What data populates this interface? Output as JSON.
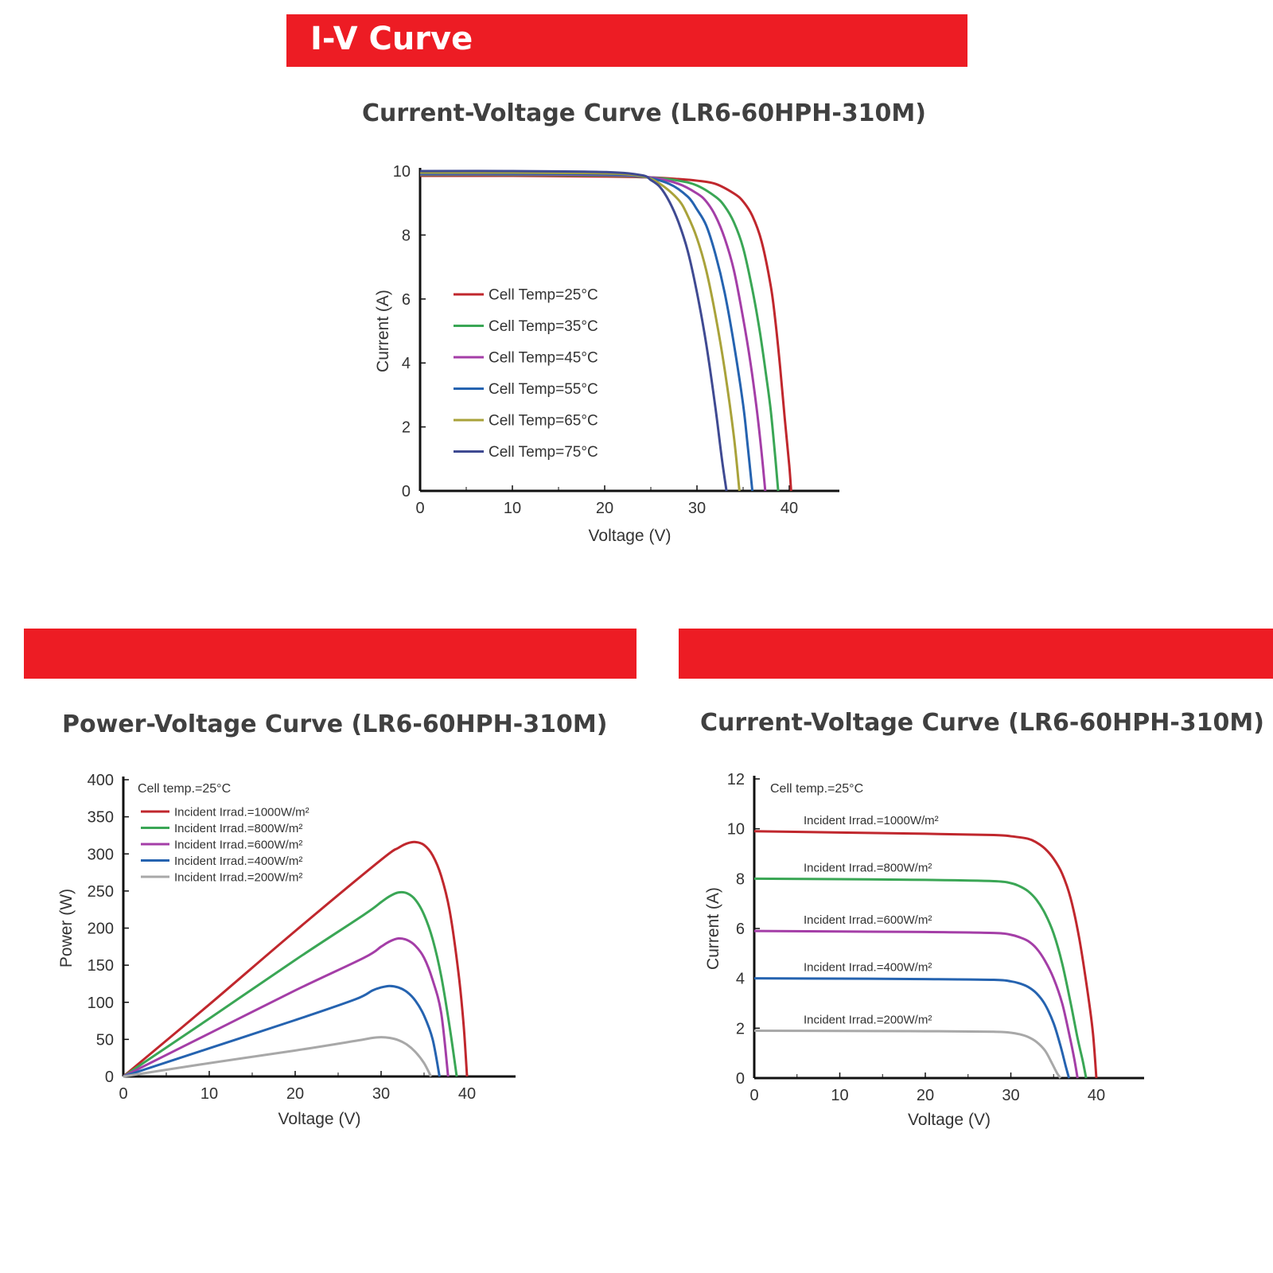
{
  "header": {
    "title": "I-V Curve"
  },
  "colors": {
    "banner": "#ed1c24",
    "red": "#c0272d",
    "green": "#3aa655",
    "magenta": "#a43ea7",
    "blue": "#2563b0",
    "olive": "#a9a23a",
    "navy": "#3f4a92",
    "gray": "#a8a8a8"
  },
  "chart_data": [
    {
      "type": "line",
      "title": "Current-Voltage Curve (LR6-60HPH-310M)",
      "xlabel": "Voltage (V)",
      "ylabel": "Current (A)",
      "xlim": [
        0,
        45
      ],
      "ylim": [
        0,
        10
      ],
      "xticks": [
        "0",
        "10",
        "20",
        "30",
        "40"
      ],
      "yticks": [
        "0",
        "2",
        "4",
        "6",
        "8",
        "10"
      ],
      "legend_position": "center-left",
      "series": [
        {
          "name": "Cell Temp=25°C",
          "color": "#c0272d",
          "x": [
            0,
            10,
            20,
            25,
            28,
            30,
            32,
            34,
            35,
            36,
            37,
            38,
            38.5,
            39,
            39.5,
            40,
            40.2
          ],
          "y": [
            9.85,
            9.85,
            9.83,
            9.8,
            9.75,
            9.7,
            9.6,
            9.3,
            9.05,
            8.6,
            7.8,
            6.4,
            5.3,
            3.9,
            2.3,
            0.8,
            0
          ]
        },
        {
          "name": "Cell Temp=35°C",
          "color": "#3aa655",
          "x": [
            0,
            10,
            20,
            25,
            28,
            30,
            32,
            33,
            34,
            35,
            36,
            36.8,
            37.5,
            38,
            38.5,
            38.8
          ],
          "y": [
            9.88,
            9.88,
            9.86,
            9.8,
            9.7,
            9.55,
            9.2,
            8.9,
            8.4,
            7.6,
            6.3,
            5,
            3.6,
            2.5,
            1,
            0
          ]
        },
        {
          "name": "Cell Temp=45°C",
          "color": "#a43ea7",
          "x": [
            0,
            10,
            20,
            25,
            28,
            30,
            31,
            32,
            33,
            34,
            35,
            35.8,
            36.5,
            37,
            37.4
          ],
          "y": [
            9.9,
            9.9,
            9.88,
            9.8,
            9.6,
            9.3,
            9.05,
            8.6,
            7.9,
            6.9,
            5.4,
            4,
            2.5,
            1.2,
            0
          ]
        },
        {
          "name": "Cell Temp=55°C",
          "color": "#2563b0",
          "x": [
            0,
            10,
            20,
            24,
            27,
            29,
            30,
            31,
            32,
            33,
            34,
            35,
            35.5,
            36
          ],
          "y": [
            9.92,
            9.92,
            9.9,
            9.83,
            9.6,
            9.2,
            8.8,
            8.3,
            7.4,
            6.2,
            4.6,
            2.7,
            1.4,
            0
          ]
        },
        {
          "name": "Cell Temp=65°C",
          "color": "#a9a23a",
          "x": [
            0,
            10,
            20,
            24,
            26,
            28,
            29,
            30,
            31,
            32,
            33,
            34,
            34.6
          ],
          "y": [
            9.95,
            9.95,
            9.93,
            9.84,
            9.6,
            9.1,
            8.6,
            7.9,
            6.9,
            5.5,
            3.8,
            1.7,
            0
          ]
        },
        {
          "name": "Cell Temp=75°C",
          "color": "#3f4a92",
          "x": [
            0,
            10,
            20,
            24,
            25,
            26,
            27,
            28,
            29,
            30,
            31,
            32,
            32.7,
            33.2
          ],
          "y": [
            10,
            10,
            9.97,
            9.87,
            9.72,
            9.5,
            9.05,
            8.4,
            7.5,
            6.2,
            4.6,
            2.6,
            1,
            0
          ]
        }
      ]
    },
    {
      "type": "line",
      "title": "Power-Voltage Curve (LR6-60HPH-310M)",
      "xlabel": "Voltage (V)",
      "ylabel": "Power (W)",
      "xlim": [
        0,
        45
      ],
      "ylim": [
        0,
        400
      ],
      "xticks": [
        "0",
        "10",
        "20",
        "30",
        "40"
      ],
      "yticks": [
        "0",
        "50",
        "100",
        "150",
        "200",
        "250",
        "300",
        "350",
        "400"
      ],
      "legend_position": "top-left",
      "annotation": "Cell temp.=25°C",
      "series": [
        {
          "name": "Incident Irrad.=1000W/m²",
          "color": "#c0272d",
          "x": [
            0,
            10,
            20,
            30,
            32,
            33,
            34,
            35,
            36,
            37,
            38,
            39,
            39.6,
            40
          ],
          "y": [
            0,
            97,
            196,
            292,
            308,
            314,
            316,
            312,
            298,
            270,
            222,
            140,
            70,
            0
          ]
        },
        {
          "name": "Incident Irrad.=800W/m²",
          "color": "#3aa655",
          "x": [
            0,
            10,
            20,
            28,
            30,
            31,
            32,
            33,
            34,
            35,
            36,
            37,
            38,
            38.8
          ],
          "y": [
            0,
            78,
            157,
            218,
            235,
            243,
            248,
            247,
            238,
            218,
            185,
            135,
            65,
            0
          ]
        },
        {
          "name": "Incident Irrad.=600W/m²",
          "color": "#a43ea7",
          "x": [
            0,
            10,
            20,
            28,
            30,
            31,
            32,
            33,
            34,
            35,
            36,
            37,
            37.8
          ],
          "y": [
            0,
            58,
            116,
            160,
            175,
            182,
            186,
            184,
            176,
            160,
            130,
            85,
            0
          ]
        },
        {
          "name": "Incident Irrad.=400W/m²",
          "color": "#2563b0",
          "x": [
            0,
            10,
            20,
            27,
            29,
            30,
            31,
            32,
            33,
            34,
            35,
            36,
            36.8
          ],
          "y": [
            0,
            38,
            76,
            104,
            116,
            120,
            122,
            120,
            114,
            102,
            82,
            50,
            0
          ]
        },
        {
          "name": "Incident Irrad.=200W/m²",
          "color": "#a8a8a8",
          "x": [
            0,
            10,
            20,
            27,
            29,
            30,
            31,
            32,
            33,
            34,
            35,
            35.8
          ],
          "y": [
            0,
            18,
            35,
            48,
            52,
            53,
            52,
            49,
            43,
            33,
            18,
            0
          ]
        }
      ]
    },
    {
      "type": "line",
      "title": "Current-Voltage Curve (LR6-60HPH-310M)",
      "xlabel": "Voltage (V)",
      "ylabel": "Current (A)",
      "xlim": [
        0,
        45
      ],
      "ylim": [
        0,
        12
      ],
      "xticks": [
        "0",
        "10",
        "20",
        "30",
        "40"
      ],
      "yticks": [
        "0",
        "2",
        "4",
        "6",
        "8",
        "10",
        "12"
      ],
      "legend_position": "inline",
      "annotation": "Cell temp.=25°C",
      "series": [
        {
          "name": "Incident Irrad.=1000W/m²",
          "color": "#c0272d",
          "x": [
            0,
            10,
            20,
            28,
            30,
            32,
            33,
            34,
            35,
            36,
            37,
            38,
            39,
            39.6,
            40
          ],
          "y": [
            9.9,
            9.85,
            9.8,
            9.75,
            9.7,
            9.6,
            9.45,
            9.2,
            8.8,
            8.2,
            7.2,
            5.6,
            3.4,
            1.8,
            0
          ]
        },
        {
          "name": "Incident Irrad.=800W/m²",
          "color": "#3aa655",
          "x": [
            0,
            10,
            20,
            28,
            30,
            31,
            32,
            33,
            34,
            35,
            36,
            37,
            37.8,
            38.4,
            38.8
          ],
          "y": [
            8,
            7.98,
            7.95,
            7.9,
            7.82,
            7.7,
            7.5,
            7.15,
            6.6,
            5.8,
            4.6,
            3,
            1.6,
            0.7,
            0
          ]
        },
        {
          "name": "Incident Irrad.=600W/m²",
          "color": "#a43ea7",
          "x": [
            0,
            10,
            20,
            28,
            30,
            31,
            32,
            33,
            34,
            35,
            36,
            36.8,
            37.4,
            37.8
          ],
          "y": [
            5.9,
            5.88,
            5.86,
            5.82,
            5.75,
            5.65,
            5.5,
            5.2,
            4.7,
            4,
            3,
            1.8,
            0.8,
            0
          ]
        },
        {
          "name": "Incident Irrad.=400W/m²",
          "color": "#2563b0",
          "x": [
            0,
            10,
            20,
            28,
            30,
            31,
            32,
            33,
            34,
            35,
            35.8,
            36.4,
            36.8
          ],
          "y": [
            4,
            3.99,
            3.97,
            3.94,
            3.88,
            3.8,
            3.66,
            3.4,
            2.95,
            2.2,
            1.3,
            0.5,
            0
          ]
        },
        {
          "name": "Incident Irrad.=200W/m²",
          "color": "#a8a8a8",
          "x": [
            0,
            10,
            20,
            28,
            30,
            31,
            32,
            33,
            34,
            34.8,
            35.4,
            35.8
          ],
          "y": [
            1.9,
            1.89,
            1.88,
            1.86,
            1.82,
            1.76,
            1.65,
            1.45,
            1.1,
            0.6,
            0.2,
            0
          ]
        }
      ]
    }
  ]
}
